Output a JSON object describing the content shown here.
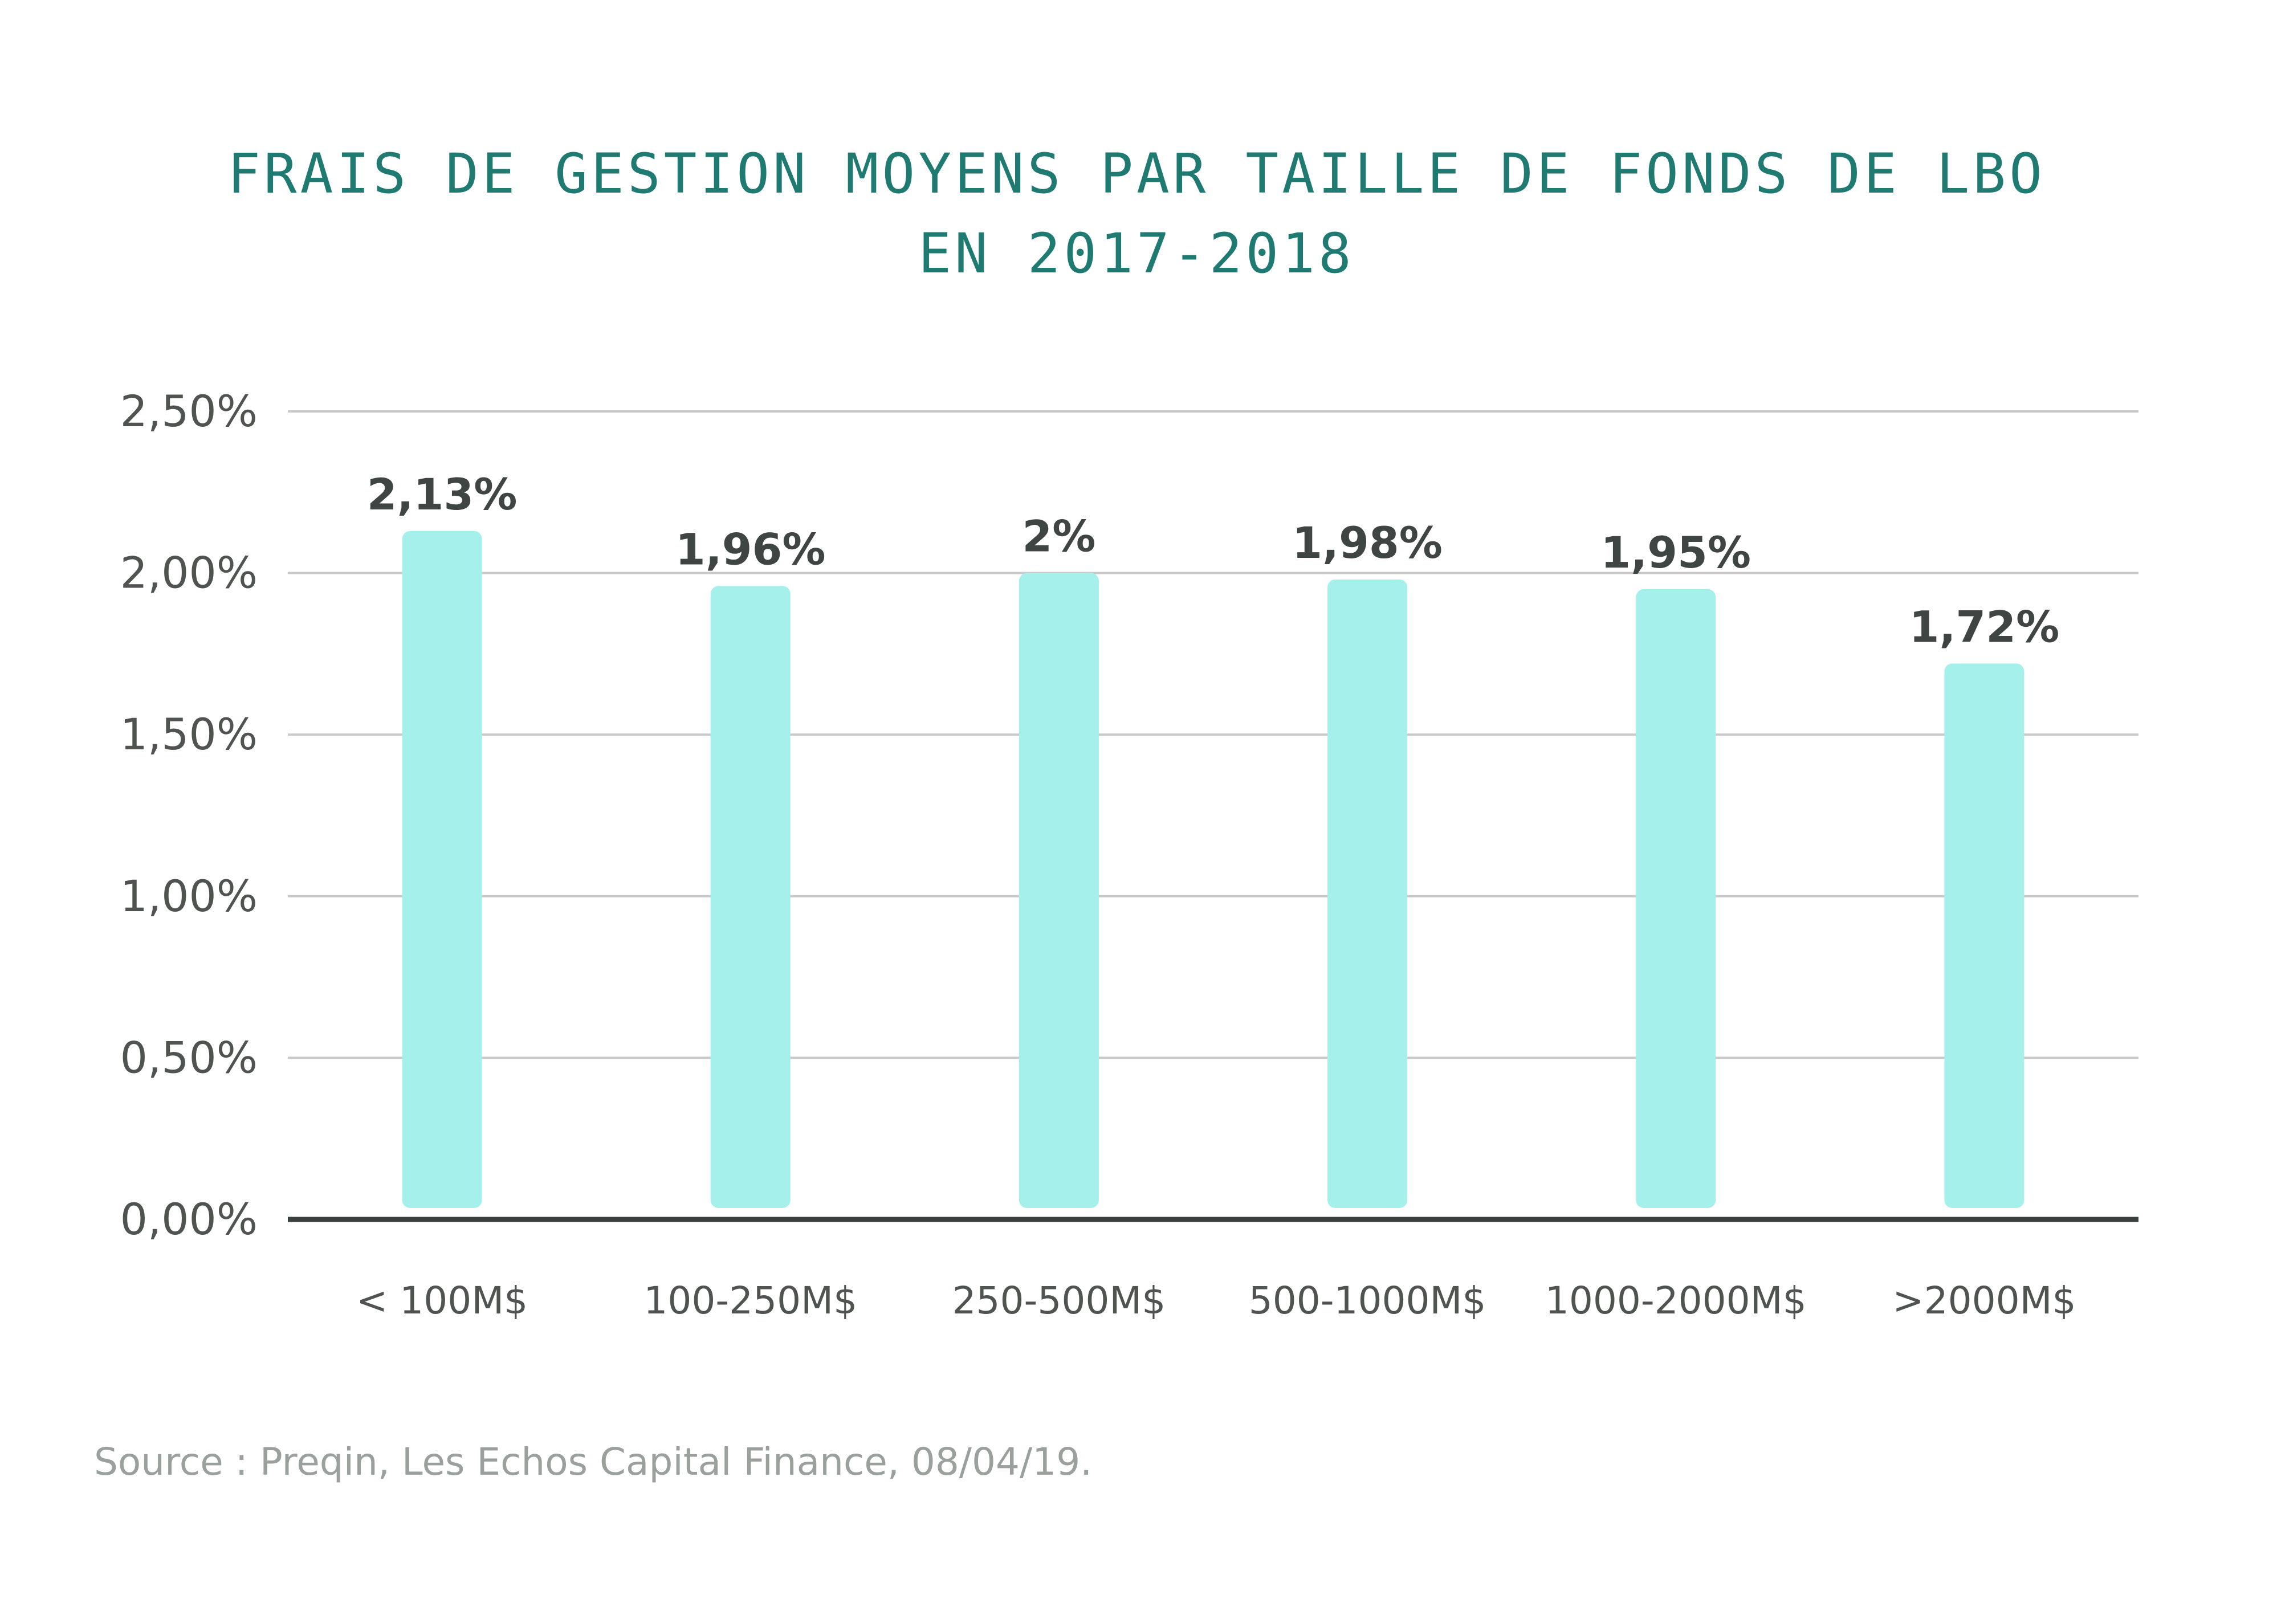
{
  "chart_data": {
    "type": "bar",
    "title_lines": [
      "FRAIS DE GESTION MOYENS PAR TAILLE DE FONDS DE LBO",
      "EN 2017-2018"
    ],
    "categories": [
      "< 100M$",
      "100-250M$",
      "250-500M$",
      "500-1000M$",
      "1000-2000M$",
      ">2000M$"
    ],
    "values": [
      2.13,
      1.96,
      2.0,
      1.98,
      1.95,
      1.72
    ],
    "data_labels": [
      "2,13%",
      "1,96%",
      "2%",
      "1,98%",
      "1,95%",
      "1,72%"
    ],
    "yticks": [
      0,
      0.5,
      1.0,
      1.5,
      2.0,
      2.5
    ],
    "ytick_labels": [
      "0,00%",
      "0,50%",
      "1,00%",
      "1,50%",
      "2,00%",
      "2,50%"
    ],
    "ylim": [
      0,
      2.5
    ],
    "grid": true,
    "legend": "none",
    "colors": {
      "bar": "#a5f0ea",
      "title": "#1f7a72",
      "baseline": "#3a403d",
      "gridline": "#c9c9c9"
    }
  },
  "source": "Source :  Preqin, Les Echos Capital Finance, 08/04/19."
}
